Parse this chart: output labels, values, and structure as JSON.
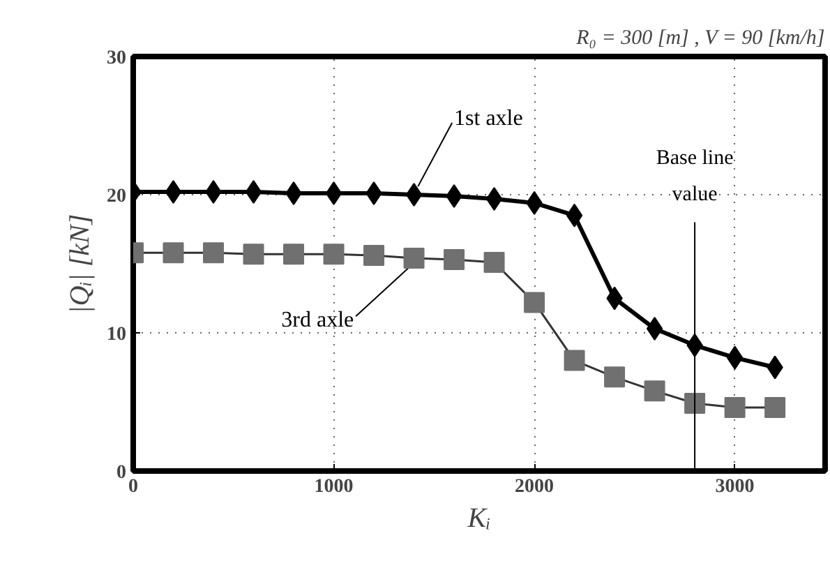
{
  "chart_data": {
    "type": "line",
    "title": "R₀ = 300 [m] , V = 90 [km/h]",
    "xlabel": "Kᵢ",
    "ylabel": "|Qᵢ| [kN]",
    "x": [
      0,
      200,
      400,
      600,
      800,
      1000,
      1200,
      1400,
      1600,
      1800,
      2000,
      2200,
      2400,
      2600,
      2800,
      3000,
      3200
    ],
    "series": [
      {
        "name": "1st axle",
        "color": "#000000",
        "marker": "diamond",
        "values": [
          20.2,
          20.2,
          20.2,
          20.2,
          20.1,
          20.1,
          20.1,
          20.0,
          19.9,
          19.7,
          19.4,
          18.5,
          12.5,
          10.3,
          9.1,
          8.2,
          7.5
        ]
      },
      {
        "name": "3rd axle",
        "color": "#707070",
        "marker": "square",
        "values": [
          15.8,
          15.8,
          15.8,
          15.7,
          15.7,
          15.7,
          15.6,
          15.4,
          15.3,
          15.1,
          12.2,
          8.0,
          6.8,
          5.8,
          4.9,
          4.6,
          4.6
        ]
      }
    ],
    "ref_lines": [
      {
        "axis": "x",
        "value": 2800,
        "label": "Base line value",
        "color": "#000000"
      }
    ],
    "xlim": [
      0,
      3450
    ],
    "ylim": [
      0,
      30
    ],
    "xticks": [
      0,
      1000,
      2000,
      3000
    ],
    "yticks": [
      0,
      10,
      20,
      30
    ],
    "grid": true,
    "line_style": "solid"
  }
}
